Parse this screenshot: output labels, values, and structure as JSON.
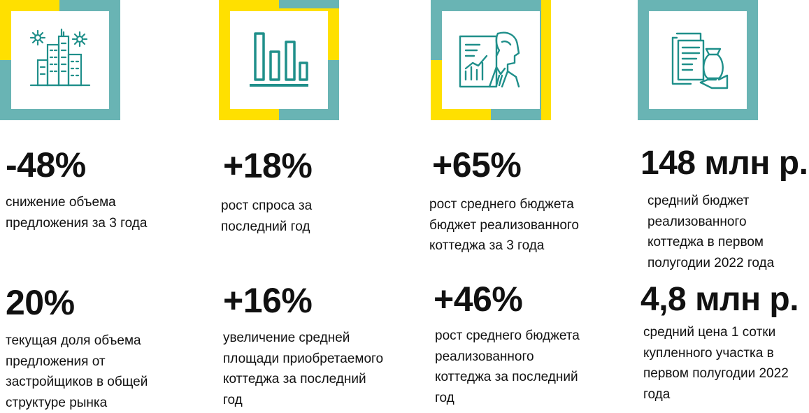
{
  "colors": {
    "teal": "#69b4b4",
    "yellow": "#ffe000",
    "icon": "#1f8f8a"
  },
  "icons": [
    {
      "name": "city-buildings-icon"
    },
    {
      "name": "bar-chart-icon"
    },
    {
      "name": "businessman-chart-icon"
    },
    {
      "name": "documents-money-bag-icon"
    }
  ],
  "stats": [
    {
      "value": "-48%",
      "description": "снижение объема\nпредложения за 3 года"
    },
    {
      "value": "+18%",
      "description": "рост спроса за\nпоследний год"
    },
    {
      "value": "+65%",
      "description": "рост среднего бюджета\nбюджет реализованного\nкоттеджа за 3 года"
    },
    {
      "value": "148 млн р.",
      "description": "средний бюджет\nреализованного\nкоттеджа в первом\nполугодии 2022 года"
    },
    {
      "value": "20%",
      "description": "текущая доля объема\nпредложения от\nзастройщиков в общей\nструктуре рынка"
    },
    {
      "value": "+16%",
      "description": "увеличение средней\nплощади приобретаемого\nкоттеджа за последний\nгод"
    },
    {
      "value": "+46%",
      "description": "рост среднего бюджета\nреализованного\nкоттеджа за последний\nгод"
    },
    {
      "value": "4,8 млн р.",
      "description": "средний цена 1 сотки\nкупленного участка в\nпервом полугодии 2022\nгода"
    }
  ]
}
